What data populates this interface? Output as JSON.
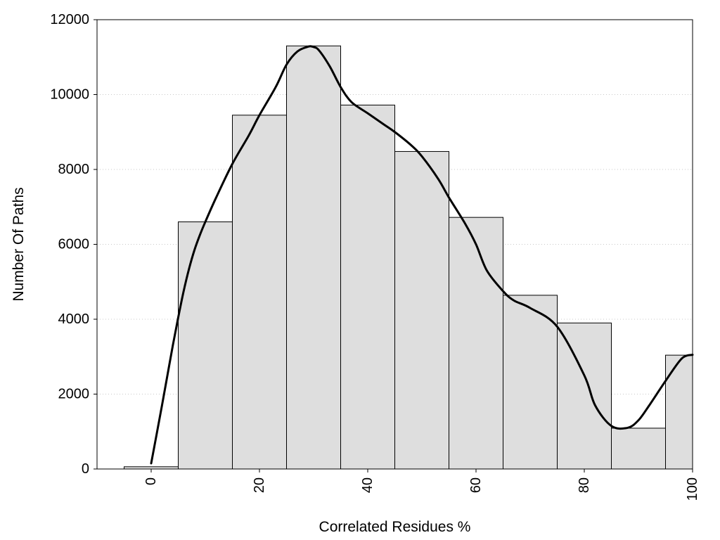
{
  "chart_data": {
    "type": "bar",
    "title": "",
    "xlabel": "Correlated Residues %",
    "ylabel": "Number Of Paths",
    "xlim": [
      -10,
      100
    ],
    "ylim": [
      0,
      12000
    ],
    "grid": "horizontal dotted",
    "legend": "none",
    "bar_width": 10,
    "bar_color": "#dedede",
    "bar_edge_color": "#000000",
    "curve_color": "#000000",
    "x_ticks": [
      0,
      20,
      40,
      60,
      80,
      100
    ],
    "y_ticks": [
      0,
      2000,
      4000,
      6000,
      8000,
      10000,
      12000
    ],
    "bars": [
      {
        "x": 0,
        "value": 60
      },
      {
        "x": 10,
        "value": 6600
      },
      {
        "x": 20,
        "value": 9450
      },
      {
        "x": 30,
        "value": 11300
      },
      {
        "x": 40,
        "value": 9720
      },
      {
        "x": 50,
        "value": 8480
      },
      {
        "x": 60,
        "value": 6720
      },
      {
        "x": 70,
        "value": 4640
      },
      {
        "x": 80,
        "value": 3900
      },
      {
        "x": 90,
        "value": 1090
      },
      {
        "x": 100,
        "value": 3040
      }
    ],
    "curve": {
      "x": [
        0,
        1,
        2,
        3,
        4,
        5,
        6,
        7,
        8,
        9,
        10,
        12,
        15,
        18,
        20,
        23,
        25,
        27,
        29,
        30,
        31,
        33,
        35,
        37,
        40,
        43,
        45,
        48,
        50,
        53,
        55,
        58,
        60,
        62,
        65,
        67,
        70,
        75,
        80,
        82,
        85,
        88,
        90,
        92,
        95,
        98,
        100
      ],
      "y": [
        150,
        920,
        1700,
        2500,
        3300,
        4050,
        4750,
        5350,
        5850,
        6250,
        6600,
        7250,
        8150,
        8900,
        9450,
        10200,
        10800,
        11150,
        11280,
        11270,
        11180,
        10750,
        10200,
        9800,
        9500,
        9200,
        9000,
        8650,
        8350,
        7750,
        7250,
        6550,
        6000,
        5300,
        4750,
        4500,
        4300,
        3800,
        2500,
        1700,
        1150,
        1100,
        1300,
        1700,
        2350,
        2950,
        3050
      ]
    }
  }
}
